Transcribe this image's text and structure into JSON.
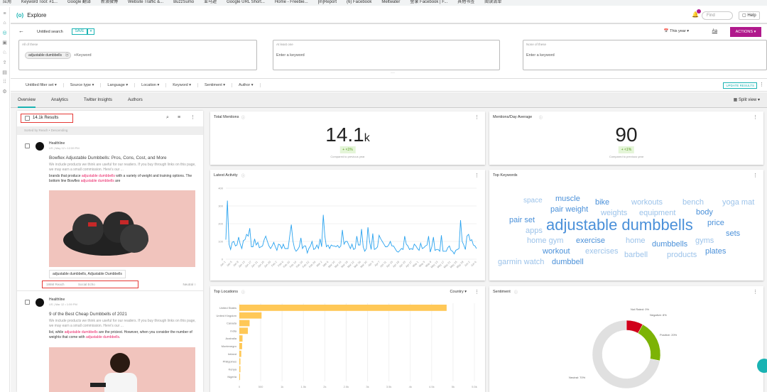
{
  "bookmarks": [
    "应用",
    "Keyword Tool: #1...",
    "Google 翻译",
    "新浪微博",
    "Website Traffic &...",
    "BuzzSumo",
    "亚马逊",
    "Google URL Short...",
    "Home - Freebie...",
    "[m]Report",
    "(6) Facebook",
    "Meltwater",
    "登录 Facebook | F...",
    "其他书签",
    "阅读清单"
  ],
  "header": {
    "title": "Explore",
    "find_placeholder": "Find",
    "help": "Help",
    "notif_count": "8"
  },
  "search": {
    "name": "Untitled search",
    "save": "SAVE",
    "date_range": "This year",
    "font_btn": "Aa",
    "actions": "ACTIONS"
  },
  "keywords": {
    "all": {
      "label": "All of these",
      "chip": "adjustable dumbbells",
      "placeholder": "+Keyword"
    },
    "any": {
      "label": "At least one",
      "placeholder": "Enter a keyword"
    },
    "none": {
      "label": "None of these",
      "placeholder": "Enter a keyword"
    }
  },
  "filters": [
    "Untitled filter set",
    "Source type",
    "Language",
    "Location",
    "Keyword",
    "Sentiment",
    "Author"
  ],
  "update_results": "UPDATE RESULTS",
  "tabs": [
    "Overview",
    "Analytics",
    "Twitter Insights",
    "Authors"
  ],
  "split_view": "Split view",
  "results": {
    "count": "14.1k Results",
    "sort": "Sorted by Reach • Descending",
    "items": [
      {
        "source": "Healthline",
        "meta": "US | May 12 • 12:59 PM",
        "title": "Bowflex Adjustable Dumbbells: Pros, Cons, Cost, and More",
        "snippet": "We include products we think are useful for our readers. If you buy through links on this page, we may earn a small commission. Here's our ...",
        "hl_a": "brands that produce ",
        "hl_b": "adjustable dumbbells",
        "hl_c": " with a variety of weight and training options. The bottom line Bowflex ",
        "hl_d": "adjustable dumbbells",
        "hl_e": " are",
        "tags": "adjustable dumbbells, Adjustable Dumbbells",
        "reach": "186M Reach",
        "echo": "Social Echo",
        "sentiment": "Neutral"
      },
      {
        "source": "Healthline",
        "meta": "US | Mar 12 • 1:59 PM",
        "title": "9 of the Best Cheap Dumbbells of 2021",
        "snippet": "We include products we think are useful for our readers. If you buy through links on this page, we may earn a small commission. Here's our ...",
        "hl_a": "list, while ",
        "hl_b": "adjustable dumbbells",
        "hl_c": " are the priciest. However, when you consider the number of weights that come with ",
        "hl_d": "adjustable dumbbells",
        "hl_e": "."
      }
    ]
  },
  "total_mentions": {
    "title": "Total Mentions",
    "value": "14.1",
    "unit": "k",
    "delta": "+ <1%",
    "compare": "Compared to previous year"
  },
  "per_day": {
    "title": "Mentions/Day Average",
    "value": "90",
    "delta": "+ <1%",
    "compare": "Compared to previous year"
  },
  "top_keywords": {
    "title": "Top Keywords",
    "words": [
      "space",
      "muscle",
      "bike",
      "workouts",
      "bench",
      "yoga mat",
      "pair weight",
      "weights",
      "equipment",
      "body",
      "pair set",
      "apps",
      "adjustable dumbbells",
      "price",
      "sets",
      "home gym",
      "exercise",
      "home",
      "dumbbells",
      "gyms",
      "workout",
      "exercises",
      "barbell",
      "products",
      "plates",
      "garmin watch",
      "dumbbell"
    ]
  },
  "colors": {
    "accent": "#19b3b3",
    "actions": "#b0198c",
    "line": "#2aa3ef",
    "bar": "#ffc857",
    "negative": "#d0021b",
    "positive": "#7cb305",
    "neutral": "#e0e0e0",
    "highlight": "#e91e63"
  },
  "chart_data": [
    {
      "type": "line",
      "title": "Latest Activity",
      "ylim": [
        0,
        400
      ],
      "yticks": [
        0,
        100,
        200,
        300,
        400
      ],
      "x_ticks": [
        "Jan 1",
        "Jan 5",
        "Jan 9",
        "Jan 13",
        "Jan 17",
        "Jan 21",
        "Jan 25",
        "Jan 29",
        "Feb 2",
        "Feb 6",
        "Feb 10",
        "Feb 14",
        "Feb 18",
        "Feb 22",
        "Feb 26",
        "Mar 2",
        "Mar 6",
        "Mar 10",
        "Mar 14",
        "Mar 18",
        "Mar 22",
        "Mar 26",
        "Mar 30",
        "Apr 3",
        "Apr 7",
        "Apr 11",
        "Apr 15",
        "Apr 19",
        "Apr 23",
        "Apr 27",
        "May 1",
        "May 5",
        "May 9",
        "May 13",
        "May 17",
        "May 21",
        "May 25",
        "May 29",
        "Jun 2",
        "Jun 6"
      ],
      "values": [
        110,
        330,
        85,
        55,
        95,
        100,
        75,
        80,
        125,
        85,
        60,
        105,
        110,
        140,
        130,
        175,
        70,
        70,
        115,
        80,
        95,
        65,
        70,
        75,
        110,
        130,
        100,
        75,
        60,
        75,
        95,
        70,
        50,
        85,
        80,
        60,
        85,
        60,
        60,
        60,
        130,
        195,
        105,
        60,
        45,
        55,
        70,
        120,
        60,
        75,
        75,
        35,
        60,
        75,
        100,
        55,
        60,
        80,
        60,
        115,
        70,
        250,
        130,
        70,
        80,
        60,
        80,
        75,
        75,
        70,
        78,
        65,
        75,
        165,
        85,
        100,
        100,
        80,
        60,
        85,
        55,
        60,
        130,
        80,
        80,
        170,
        70,
        45,
        60,
        180,
        100,
        55,
        145,
        55,
        60,
        70,
        135,
        115,
        100,
        85,
        70,
        70,
        80,
        100,
        75,
        75,
        60,
        45,
        40,
        50,
        60,
        55,
        130,
        85,
        75,
        55,
        60,
        55,
        85,
        75,
        60,
        50,
        90,
        60,
        65,
        75,
        80,
        130,
        40,
        70,
        125,
        50,
        55,
        55,
        45,
        135,
        45,
        45,
        45,
        65,
        75,
        50,
        45,
        30,
        50,
        55,
        60,
        220,
        100,
        80,
        55,
        130,
        140,
        105,
        110,
        80,
        75,
        60
      ]
    },
    {
      "type": "bar",
      "orientation": "horizontal",
      "title": "Top Locations",
      "dropdown": "Country",
      "categories": [
        "United States",
        "United Kingdom",
        "Canada",
        "India",
        "Australia",
        "Montenegro",
        "Ireland",
        "Philippines",
        "Kenya",
        "Nigeria"
      ],
      "values": [
        4850,
        520,
        240,
        200,
        75,
        65,
        45,
        25,
        25,
        15
      ],
      "xlim": [
        0,
        5500
      ],
      "xticks": [
        "0",
        "500",
        "1k",
        "1.5k",
        "2k",
        "2.5k",
        "3k",
        "3.5k",
        "4k",
        "4.5k",
        "5k",
        "5.5k"
      ]
    },
    {
      "type": "pie",
      "title": "Sentiment",
      "donut": true,
      "slices": [
        {
          "label": "Not Rated: 0%",
          "value": 0
        },
        {
          "label": "Negative: 8%",
          "value": 8
        },
        {
          "label": "Positive: 20%",
          "value": 20
        },
        {
          "label": "Neutral: 70%",
          "value": 70
        }
      ]
    }
  ]
}
